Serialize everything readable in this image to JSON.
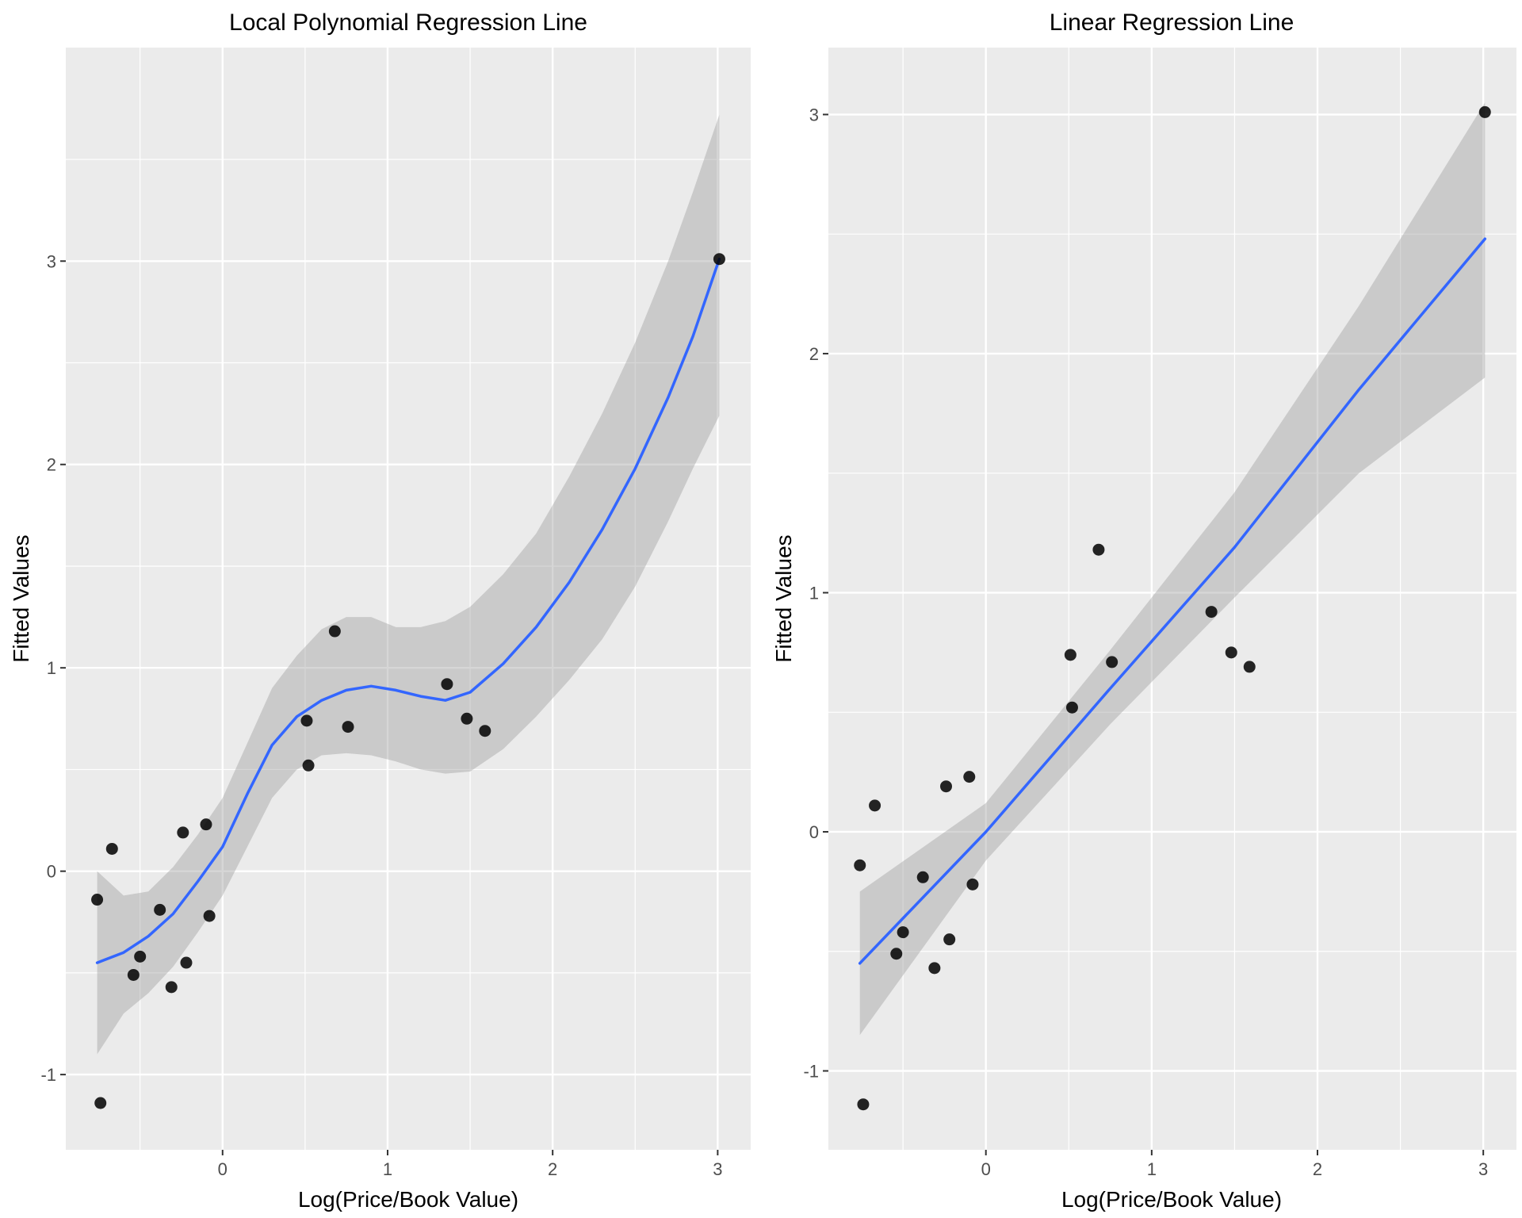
{
  "chart_data": [
    {
      "type": "scatter",
      "title": "Local Polynomial Regression Line",
      "xlabel": "Log(Price/Book Value)",
      "ylabel": "Fitted Values",
      "xlim": [
        -0.95,
        3.2
      ],
      "ylim": [
        -1.37,
        4.05
      ],
      "x_ticks": [
        0,
        1,
        2,
        3
      ],
      "x_tick_labels": [
        "0",
        "1",
        "2",
        "3"
      ],
      "y_ticks": [
        -1,
        0,
        1,
        2,
        3
      ],
      "y_tick_labels": [
        "-1",
        "0",
        "1",
        "2",
        "3"
      ],
      "grid": true,
      "points": [
        {
          "x": -0.76,
          "y": -0.14
        },
        {
          "x": -0.74,
          "y": -1.14
        },
        {
          "x": -0.67,
          "y": 0.11
        },
        {
          "x": -0.54,
          "y": -0.51
        },
        {
          "x": -0.5,
          "y": -0.42
        },
        {
          "x": -0.38,
          "y": -0.19
        },
        {
          "x": -0.31,
          "y": -0.57
        },
        {
          "x": -0.24,
          "y": 0.19
        },
        {
          "x": -0.22,
          "y": -0.45
        },
        {
          "x": -0.1,
          "y": 0.23
        },
        {
          "x": -0.08,
          "y": -0.22
        },
        {
          "x": 0.51,
          "y": 0.74
        },
        {
          "x": 0.52,
          "y": 0.52
        },
        {
          "x": 0.68,
          "y": 1.18
        },
        {
          "x": 0.76,
          "y": 0.71
        },
        {
          "x": 1.36,
          "y": 0.92
        },
        {
          "x": 1.48,
          "y": 0.75
        },
        {
          "x": 1.59,
          "y": 0.69
        },
        {
          "x": 3.01,
          "y": 3.01
        }
      ],
      "fit_line": {
        "method": "loess",
        "color": "#3366FF",
        "x": [
          -0.76,
          -0.6,
          -0.45,
          -0.3,
          -0.15,
          0.0,
          0.15,
          0.3,
          0.45,
          0.6,
          0.75,
          0.9,
          1.05,
          1.2,
          1.35,
          1.5,
          1.7,
          1.9,
          2.1,
          2.3,
          2.5,
          2.7,
          2.85,
          3.01
        ],
        "y": [
          -0.45,
          -0.4,
          -0.32,
          -0.21,
          -0.05,
          0.12,
          0.38,
          0.62,
          0.76,
          0.84,
          0.89,
          0.91,
          0.89,
          0.86,
          0.84,
          0.88,
          1.02,
          1.2,
          1.42,
          1.68,
          1.98,
          2.33,
          2.63,
          3.01
        ],
        "lower": [
          -0.9,
          -0.7,
          -0.6,
          -0.47,
          -0.3,
          -0.12,
          0.12,
          0.36,
          0.5,
          0.57,
          0.58,
          0.57,
          0.54,
          0.5,
          0.48,
          0.49,
          0.6,
          0.76,
          0.94,
          1.14,
          1.4,
          1.72,
          1.98,
          2.24
        ],
        "upper": [
          0.0,
          -0.12,
          -0.1,
          0.02,
          0.18,
          0.36,
          0.63,
          0.9,
          1.06,
          1.19,
          1.25,
          1.25,
          1.2,
          1.2,
          1.23,
          1.3,
          1.46,
          1.66,
          1.94,
          2.25,
          2.6,
          3.0,
          3.34,
          3.72
        ]
      }
    },
    {
      "type": "scatter",
      "title": "Linear Regression Line",
      "xlabel": "Log(Price/Book Value)",
      "ylabel": "Fitted Values",
      "xlim": [
        -0.95,
        3.2
      ],
      "ylim": [
        -1.33,
        3.28
      ],
      "x_ticks": [
        0,
        1,
        2,
        3
      ],
      "x_tick_labels": [
        "0",
        "1",
        "2",
        "3"
      ],
      "y_ticks": [
        -1,
        0,
        1,
        2,
        3
      ],
      "y_tick_labels": [
        "-1",
        "0",
        "1",
        "2",
        "3"
      ],
      "grid": true,
      "points": [
        {
          "x": -0.76,
          "y": -0.14
        },
        {
          "x": -0.74,
          "y": -1.14
        },
        {
          "x": -0.67,
          "y": 0.11
        },
        {
          "x": -0.54,
          "y": -0.51
        },
        {
          "x": -0.5,
          "y": -0.42
        },
        {
          "x": -0.38,
          "y": -0.19
        },
        {
          "x": -0.31,
          "y": -0.57
        },
        {
          "x": -0.24,
          "y": 0.19
        },
        {
          "x": -0.22,
          "y": -0.45
        },
        {
          "x": -0.1,
          "y": 0.23
        },
        {
          "x": -0.08,
          "y": -0.22
        },
        {
          "x": 0.51,
          "y": 0.74
        },
        {
          "x": 0.52,
          "y": 0.52
        },
        {
          "x": 0.68,
          "y": 1.18
        },
        {
          "x": 0.76,
          "y": 0.71
        },
        {
          "x": 1.36,
          "y": 0.92
        },
        {
          "x": 1.48,
          "y": 0.75
        },
        {
          "x": 1.59,
          "y": 0.69
        },
        {
          "x": 3.01,
          "y": 3.01
        }
      ],
      "fit_line": {
        "method": "lm",
        "color": "#3366FF",
        "x": [
          -0.76,
          0.0,
          0.75,
          1.5,
          2.25,
          3.01
        ],
        "y": [
          -0.55,
          0.0,
          0.6,
          1.19,
          1.85,
          2.48
        ],
        "lower": [
          -0.85,
          -0.12,
          0.45,
          0.98,
          1.5,
          1.9
        ],
        "upper": [
          -0.25,
          0.12,
          0.76,
          1.42,
          2.2,
          3.05
        ]
      }
    }
  ]
}
